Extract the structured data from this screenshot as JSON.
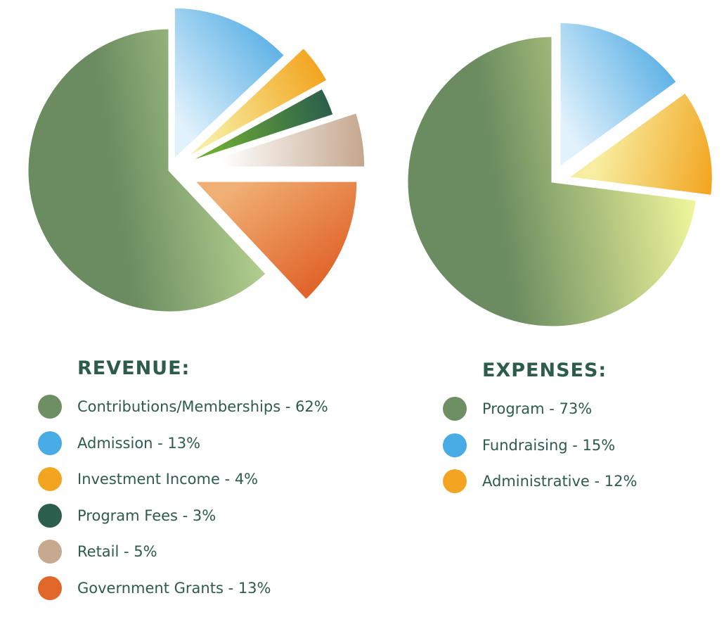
{
  "chart_data": [
    {
      "id": "revenue",
      "type": "pie",
      "title": "REVENUE:",
      "slices": [
        {
          "label": "Contributions/Memberships - 62%",
          "name": "Contributions/Memberships",
          "value": 62,
          "color": "#6e8f63",
          "gradient": [
            "#6a8c60",
            "#cfe8a0"
          ]
        },
        {
          "label": "Admission - 13%",
          "name": "Admission",
          "value": 13,
          "color": "#48abe3",
          "gradient": [
            "#5fb2e6",
            "#e2f2fc"
          ]
        },
        {
          "label": "Investment Income - 4%",
          "name": "Investment Income",
          "value": 4,
          "color": "#f3a522",
          "gradient": [
            "#f3a41f",
            "#f7eda0"
          ]
        },
        {
          "label": "Program Fees - 3%",
          "name": "Program Fees",
          "value": 3,
          "color": "#2b5e4c",
          "gradient": [
            "#2b5e4c",
            "#6cab35"
          ]
        },
        {
          "label": "Retail - 5%",
          "name": "Retail",
          "value": 5,
          "color": "#c6a98f",
          "gradient": [
            "#c4a68c",
            "#ffffff"
          ]
        },
        {
          "label": "Government Grants - 13%",
          "name": "Government Grants",
          "value": 13,
          "color": "#e0662a",
          "gradient": [
            "#e06227",
            "#f0b075"
          ]
        }
      ]
    },
    {
      "id": "expenses",
      "type": "pie",
      "title": "EXPENSES:",
      "slices": [
        {
          "label": "Program - 73%",
          "name": "Program",
          "value": 73,
          "color": "#6e8f63",
          "gradient": [
            "#6a8c60",
            "#eef49a"
          ]
        },
        {
          "label": "Fundraising - 15%",
          "name": "Fundraising",
          "value": 15,
          "color": "#48abe3",
          "gradient": [
            "#5fb2e6",
            "#e2f2fc"
          ]
        },
        {
          "label": "Administrative - 12%",
          "name": "Administrative",
          "value": 12,
          "color": "#f3a522",
          "gradient": [
            "#f3a41f",
            "#f7eda0"
          ]
        }
      ]
    }
  ]
}
